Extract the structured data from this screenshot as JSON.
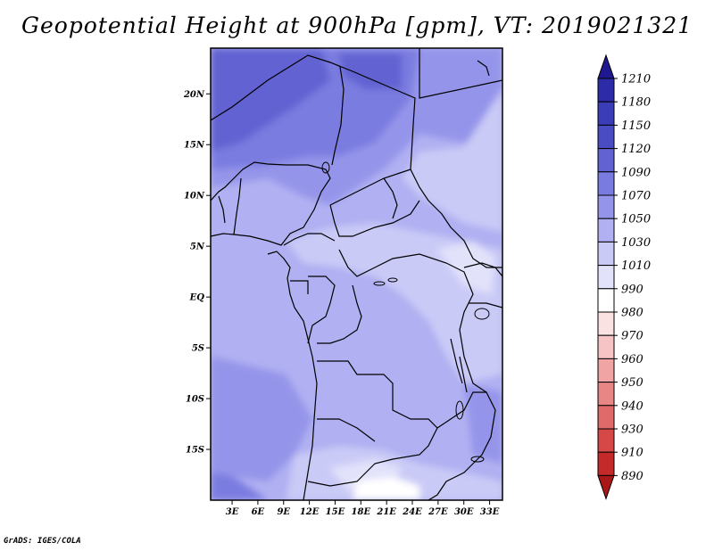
{
  "title": "Geopotential Height at 900hPa [gpm], VT: 2019021321",
  "credit": "GrADS: IGES/COLA",
  "lat_labels": [
    "20N",
    "15N",
    "10N",
    "5N",
    "EQ",
    "5S",
    "10S",
    "15S"
  ],
  "lat_values": [
    20,
    15,
    10,
    5,
    0,
    -5,
    -10,
    -15
  ],
  "lon_labels": [
    "3E",
    "6E",
    "9E",
    "12E",
    "15E",
    "18E",
    "21E",
    "24E",
    "27E",
    "30E",
    "33E"
  ],
  "lon_values": [
    3,
    6,
    9,
    12,
    15,
    18,
    21,
    24,
    27,
    30,
    33
  ],
  "colorbar": {
    "levels": [
      "1210",
      "1180",
      "1150",
      "1120",
      "1090",
      "1070",
      "1050",
      "1030",
      "1010",
      "990",
      "980",
      "970",
      "960",
      "950",
      "940",
      "930",
      "910",
      "890"
    ],
    "colors": [
      "#201890",
      "#2e2ba8",
      "#3b3cb8",
      "#4a4cc4",
      "#6262d2",
      "#7a7be0",
      "#9494ea",
      "#b0b0f2",
      "#cacaf7",
      "#e2e2fb",
      "#ffffff",
      "#fbe2e2",
      "#f6c4c4",
      "#f0a4a4",
      "#e88686",
      "#e06a6a",
      "#d64848",
      "#c42a2a",
      "#a81818"
    ]
  }
}
